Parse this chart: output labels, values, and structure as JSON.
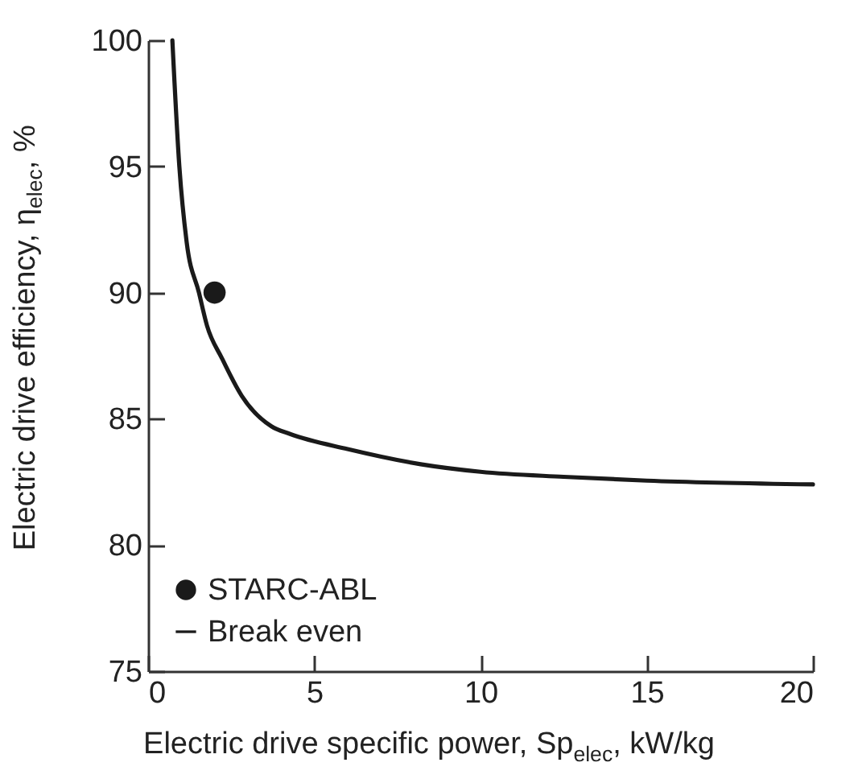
{
  "chart_data": {
    "type": "line",
    "xlabel": "Electric drive specific power, Sp$_{elec}$, kW/kg",
    "ylabel": "Electric drive efficiency, η$_{elec}$, %",
    "xlim": [
      0,
      20
    ],
    "xticks": [
      0,
      5,
      10,
      15,
      20
    ],
    "ylim": [
      75,
      100
    ],
    "yticks": [
      75,
      80,
      85,
      90,
      95,
      100
    ],
    "grid": false,
    "legend": "bottom left",
    "series": [
      {
        "name": "STARC-ABL",
        "type": "scatter",
        "marker": "circle",
        "color": "#1a1a1a",
        "x": [
          2.0
        ],
        "values": [
          90
        ]
      },
      {
        "name": "Break even",
        "color": "#1a1a1a",
        "x": [
          0.73,
          0.94,
          1.16,
          1.53,
          1.77,
          2.22,
          2.82,
          3.71,
          4.27,
          6,
          8.2,
          10,
          12.5,
          15,
          20
        ],
        "values": [
          100,
          95,
          92,
          90,
          88.7,
          87.4,
          85.9,
          84.7,
          84.4,
          83.8,
          83.2,
          82.9,
          82.7,
          82.55,
          82.4
        ]
      }
    ]
  }
}
